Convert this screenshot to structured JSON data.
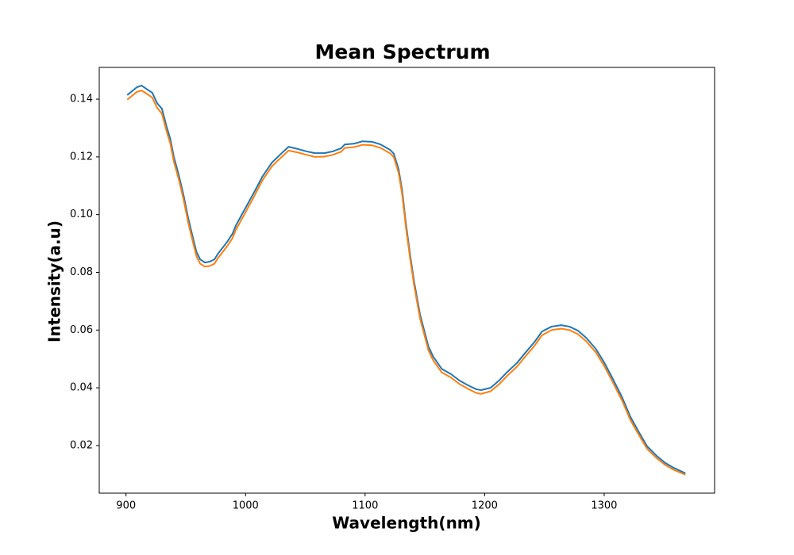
{
  "chart_data": {
    "type": "line",
    "title": "Mean Spectrum",
    "xlabel": "Wavelength(nm)",
    "ylabel": "Intensity(a.u)",
    "x": [
      901,
      909,
      913,
      918,
      922,
      926,
      930,
      934,
      937,
      940,
      944,
      948,
      952,
      956,
      959,
      962,
      966,
      970,
      974,
      977,
      981,
      985,
      989,
      992,
      999,
      1007,
      1014,
      1022,
      1029,
      1036,
      1044,
      1051,
      1058,
      1066,
      1073,
      1080,
      1083,
      1091,
      1098,
      1106,
      1113,
      1121,
      1124,
      1128,
      1131,
      1134,
      1138,
      1141,
      1146,
      1150,
      1153,
      1157,
      1164,
      1172,
      1179,
      1186,
      1193,
      1197,
      1205,
      1212,
      1219,
      1227,
      1234,
      1242,
      1248,
      1256,
      1264,
      1271,
      1278,
      1285,
      1293,
      1300,
      1307,
      1315,
      1322,
      1329,
      1336,
      1344,
      1351,
      1358,
      1368
    ],
    "series": [
      {
        "color": "#1f77b4",
        "values": [
          0.1414,
          0.1441,
          0.1447,
          0.1433,
          0.1422,
          0.1386,
          0.1367,
          0.1304,
          0.1263,
          0.12,
          0.1139,
          0.107,
          0.0988,
          0.0919,
          0.087,
          0.0845,
          0.0834,
          0.0837,
          0.0845,
          0.0865,
          0.0886,
          0.0908,
          0.0933,
          0.0963,
          0.1016,
          0.1076,
          0.1131,
          0.118,
          0.1208,
          0.1235,
          0.1227,
          0.1219,
          0.1213,
          0.1213,
          0.1219,
          0.123,
          0.1243,
          0.1246,
          0.1254,
          0.1252,
          0.1243,
          0.1224,
          0.1211,
          0.1158,
          0.1084,
          0.0974,
          0.0851,
          0.0768,
          0.0653,
          0.059,
          0.0543,
          0.0508,
          0.0466,
          0.0447,
          0.0425,
          0.0409,
          0.0395,
          0.0392,
          0.04,
          0.0425,
          0.0455,
          0.0486,
          0.0521,
          0.056,
          0.0595,
          0.0612,
          0.0617,
          0.0612,
          0.0598,
          0.0573,
          0.0535,
          0.0488,
          0.0433,
          0.0367,
          0.0299,
          0.0247,
          0.0197,
          0.0164,
          0.014,
          0.0123,
          0.0104
        ]
      },
      {
        "color": "#ff7f0e",
        "values": [
          0.1398,
          0.1425,
          0.143,
          0.1417,
          0.1405,
          0.137,
          0.135,
          0.1288,
          0.1247,
          0.1184,
          0.1124,
          0.1055,
          0.0973,
          0.0904,
          0.0855,
          0.083,
          0.082,
          0.0822,
          0.083,
          0.085,
          0.0871,
          0.0893,
          0.0918,
          0.0948,
          0.1001,
          0.1062,
          0.1118,
          0.1167,
          0.1195,
          0.1222,
          0.1215,
          0.1207,
          0.12,
          0.1201,
          0.1207,
          0.1218,
          0.1231,
          0.1234,
          0.1242,
          0.124,
          0.1231,
          0.1212,
          0.1199,
          0.1145,
          0.1071,
          0.0961,
          0.0838,
          0.0755,
          0.064,
          0.0577,
          0.053,
          0.0495,
          0.0454,
          0.0435,
          0.0413,
          0.0397,
          0.0382,
          0.0379,
          0.0388,
          0.0412,
          0.0442,
          0.0473,
          0.0508,
          0.0547,
          0.0582,
          0.06,
          0.0605,
          0.06,
          0.0586,
          0.0561,
          0.0523,
          0.0476,
          0.0421,
          0.0356,
          0.0288,
          0.0237,
          0.0188,
          0.0156,
          0.0133,
          0.0116,
          0.0099
        ]
      }
    ],
    "xlim": [
      877.6,
      1392.4
    ],
    "xticks": [
      900,
      1000,
      1100,
      1200,
      1300
    ],
    "ylim": [
      0.0035,
      0.151
    ],
    "yticks": [
      0.02,
      0.04,
      0.06,
      0.08,
      {
        "value": 0.1,
        "label": "0.10"
      },
      0.12,
      0.14
    ]
  }
}
